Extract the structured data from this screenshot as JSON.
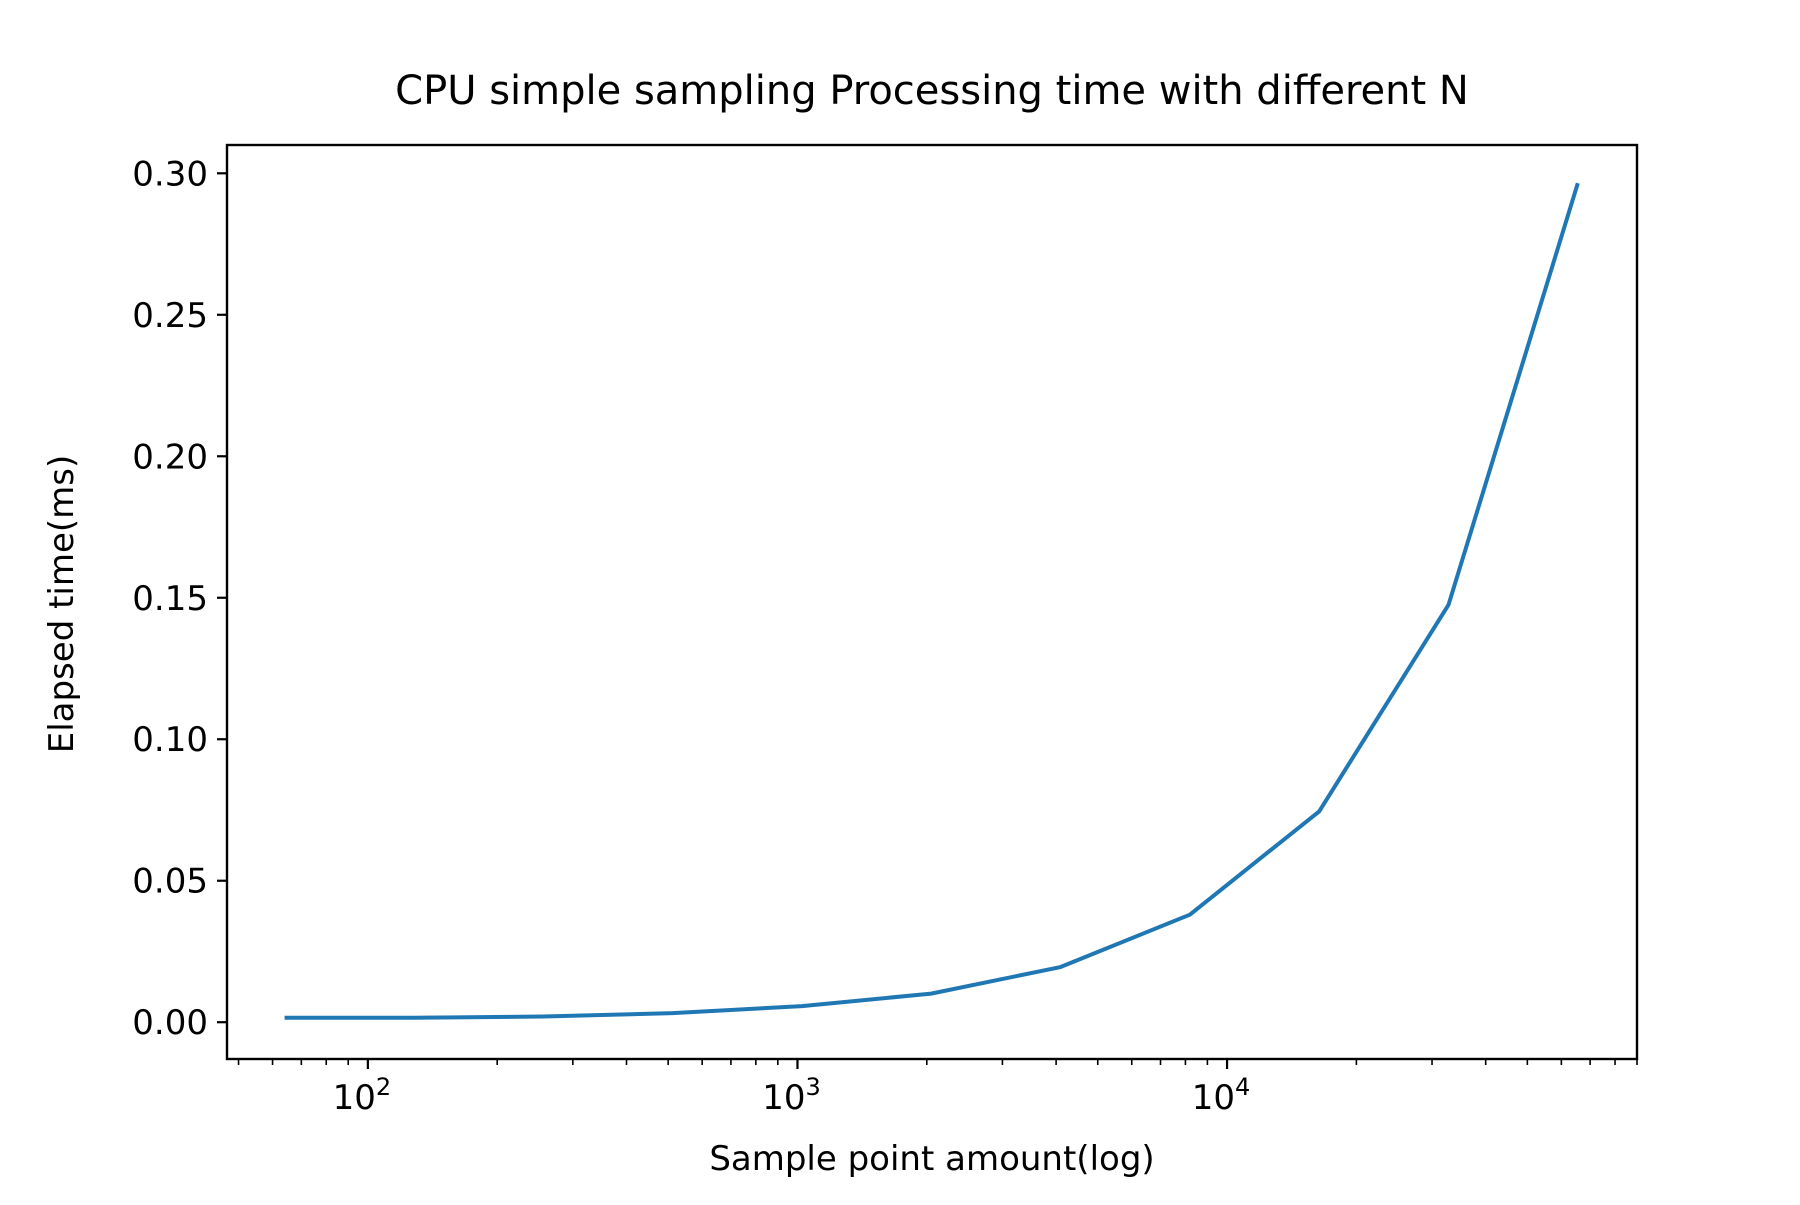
{
  "chart_data": {
    "type": "line",
    "title": "CPU simple sampling Processing time with different N",
    "xlabel": "Sample point amount(log)",
    "ylabel": "Elapsed time(ms)",
    "x_scale": "log",
    "xlim": [
      47,
      90000
    ],
    "ylim": [
      -0.013,
      0.31
    ],
    "grid": false,
    "x_ticks": [
      {
        "value": 100,
        "base": "10",
        "exp": "2"
      },
      {
        "value": 1000,
        "base": "10",
        "exp": "3"
      },
      {
        "value": 10000,
        "base": "10",
        "exp": "4"
      }
    ],
    "y_ticks": [
      {
        "value": 0.0,
        "label": "0.00"
      },
      {
        "value": 0.05,
        "label": "0.05"
      },
      {
        "value": 0.1,
        "label": "0.10"
      },
      {
        "value": 0.15,
        "label": "0.15"
      },
      {
        "value": 0.2,
        "label": "0.20"
      },
      {
        "value": 0.25,
        "label": "0.25"
      },
      {
        "value": 0.3,
        "label": "0.30"
      }
    ],
    "series": [
      {
        "color": "#1f77b4",
        "x": [
          64,
          128,
          256,
          512,
          1024,
          2048,
          4096,
          8192,
          16384,
          32768,
          65536
        ],
        "y": [
          0.0016,
          0.0016,
          0.002,
          0.0032,
          0.0057,
          0.0101,
          0.0195,
          0.038,
          0.0745,
          0.1475,
          0.2965
        ]
      }
    ]
  }
}
